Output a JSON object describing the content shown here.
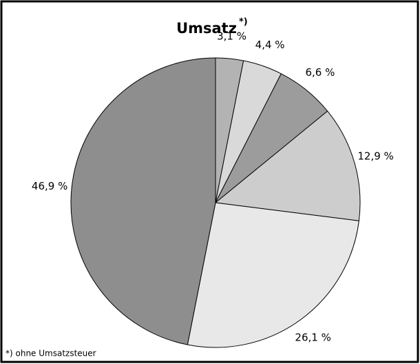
{
  "chart_data": {
    "type": "pie",
    "title": "Umsatz",
    "title_marker": "*)",
    "values": [
      3.1,
      4.4,
      6.6,
      12.9,
      26.1,
      46.9
    ],
    "value_labels": [
      "3,1 %",
      "4,4 %",
      "6,6 %",
      "12,9 %",
      "26,1 %",
      "46,9 %"
    ],
    "colors": [
      "#b3b3b3",
      "#d9d9d9",
      "#9c9c9c",
      "#cdcdcd",
      "#e8e8e8",
      "#8e8e8e"
    ],
    "footnote": "*) ohne Umsatzsteuer"
  }
}
